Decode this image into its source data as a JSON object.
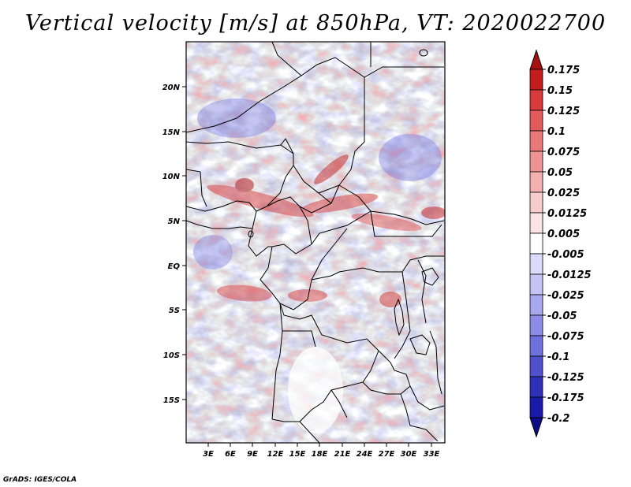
{
  "title": "Vertical velocity [m/s] at 850hPa, VT: 2020022700",
  "credit": "GrADS: IGES/COLA",
  "map": {
    "lon_labels": [
      "3E",
      "6E",
      "9E",
      "12E",
      "15E",
      "18E",
      "21E",
      "24E",
      "27E",
      "30E",
      "33E"
    ],
    "lat_labels": [
      "20N",
      "15N",
      "10N",
      "5N",
      "EQ",
      "5S",
      "10S",
      "15S"
    ]
  },
  "colorbar": {
    "levels": [
      "0.175",
      "0.15",
      "0.125",
      "0.1",
      "0.075",
      "0.05",
      "0.025",
      "0.0125",
      "0.005",
      "-0.005",
      "-0.0125",
      "-0.025",
      "-0.05",
      "-0.075",
      "-0.1",
      "-0.125",
      "-0.175",
      "-0.2"
    ],
    "colors": [
      "#a81111",
      "#c21c1c",
      "#d63a3a",
      "#e25a5a",
      "#e97878",
      "#ef9494",
      "#f4b0b0",
      "#f8cccc",
      "#fbe4e4",
      "#ffffff",
      "#dcdcfa",
      "#c4c4f4",
      "#a8a8ee",
      "#8c8ce6",
      "#7070dd",
      "#5050cc",
      "#3030b8",
      "#1a1aa8",
      "#0c0c8a"
    ]
  }
}
